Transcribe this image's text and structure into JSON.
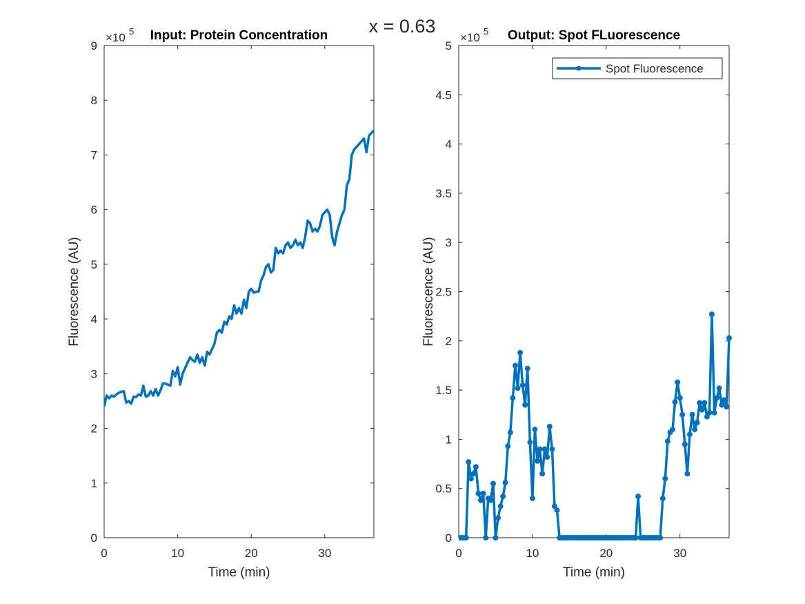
{
  "title": "x = 0.63",
  "chart_data": [
    {
      "type": "line",
      "title": "Input: Protein Concentration",
      "xlabel": "Time (min)",
      "ylabel": "Fluorescence (AU)",
      "y_scale_label": {
        "base": "×10",
        "exponent": "5"
      },
      "xlim": [
        0,
        36.67
      ],
      "ylim": [
        0,
        9
      ],
      "xticks": [
        0,
        10,
        20,
        30
      ],
      "yticks": [
        0,
        1,
        2,
        3,
        4,
        5,
        6,
        7,
        8,
        9
      ],
      "x": [
        0,
        0.33,
        0.67,
        1,
        1.33,
        1.67,
        2,
        2.33,
        2.67,
        3,
        3.33,
        3.67,
        4,
        4.33,
        4.67,
        5,
        5.33,
        5.67,
        6,
        6.33,
        6.67,
        7,
        7.33,
        7.67,
        8,
        8.33,
        8.67,
        9,
        9.33,
        9.67,
        10,
        10.33,
        10.67,
        11,
        11.33,
        11.67,
        12,
        12.33,
        12.67,
        13,
        13.33,
        13.67,
        14,
        14.33,
        14.67,
        15,
        15.33,
        15.67,
        16,
        16.33,
        16.67,
        17,
        17.33,
        17.67,
        18,
        18.33,
        18.67,
        19,
        19.33,
        19.67,
        20,
        20.33,
        20.67,
        21,
        21.33,
        21.67,
        22,
        22.33,
        22.67,
        23,
        23.33,
        23.67,
        24,
        24.33,
        24.67,
        25,
        25.33,
        25.67,
        26,
        26.33,
        26.67,
        27,
        27.33,
        27.67,
        28,
        28.33,
        28.67,
        29,
        29.33,
        29.67,
        30,
        30.33,
        30.67,
        31,
        31.33,
        31.67,
        32,
        32.33,
        32.67,
        33,
        33.33,
        33.67,
        34,
        34.33,
        34.67,
        35,
        35.33,
        35.67,
        36,
        36.33,
        36.67
      ],
      "series": [
        {
          "color": "#0072bd",
          "values": [
            2.4,
            2.6,
            2.55,
            2.6,
            2.58,
            2.62,
            2.65,
            2.67,
            2.68,
            2.47,
            2.5,
            2.45,
            2.58,
            2.57,
            2.62,
            2.6,
            2.78,
            2.58,
            2.6,
            2.68,
            2.6,
            2.72,
            2.6,
            2.7,
            2.82,
            2.82,
            2.8,
            2.78,
            3.05,
            2.95,
            3.12,
            2.8,
            3.0,
            3.1,
            3.2,
            3.3,
            3.25,
            3.22,
            3.35,
            3.2,
            3.3,
            3.15,
            3.4,
            3.35,
            3.45,
            3.55,
            3.75,
            3.8,
            3.75,
            3.95,
            3.9,
            4.05,
            4.0,
            4.25,
            4.1,
            4.2,
            4.1,
            4.35,
            4.2,
            4.5,
            4.55,
            4.48,
            4.5,
            4.5,
            4.7,
            4.8,
            4.95,
            5.0,
            4.85,
            4.9,
            5.3,
            5.2,
            5.25,
            5.2,
            5.35,
            5.4,
            5.3,
            5.35,
            5.45,
            5.35,
            5.4,
            5.3,
            5.5,
            5.8,
            5.75,
            5.6,
            5.65,
            5.6,
            5.7,
            5.9,
            5.95,
            6.0,
            5.9,
            5.5,
            5.35,
            5.6,
            5.75,
            5.9,
            6.0,
            6.45,
            6.55,
            7.0,
            7.1,
            7.15,
            7.2,
            7.25,
            7.3,
            7.05,
            7.35,
            7.4,
            7.45
          ]
        }
      ]
    },
    {
      "type": "line",
      "title": "Output: Spot FLuorescence",
      "xlabel": "Time (min)",
      "ylabel": "Fluorescence (AU)",
      "y_scale_label": {
        "base": "×10",
        "exponent": "5"
      },
      "xlim": [
        0,
        36.67
      ],
      "ylim": [
        0,
        5
      ],
      "xticks": [
        0,
        10,
        20,
        30
      ],
      "yticks": [
        0,
        0.5,
        1,
        1.5,
        2,
        2.5,
        3,
        3.5,
        4,
        4.5,
        5
      ],
      "legend": "northeast",
      "marker": "circle",
      "x": [
        0,
        0.33,
        0.67,
        1,
        1.33,
        1.67,
        2,
        2.33,
        2.67,
        3,
        3.33,
        3.67,
        4,
        4.33,
        4.67,
        5,
        5.33,
        5.67,
        6,
        6.33,
        6.67,
        7,
        7.33,
        7.67,
        8,
        8.33,
        8.67,
        9,
        9.33,
        9.67,
        10,
        10.33,
        10.67,
        11,
        11.33,
        11.67,
        12,
        12.33,
        12.67,
        13,
        13.33,
        13.67,
        14,
        14.33,
        14.67,
        15,
        15.33,
        15.67,
        16,
        16.33,
        16.67,
        17,
        17.33,
        17.67,
        18,
        18.33,
        18.67,
        19,
        19.33,
        19.67,
        20,
        20.33,
        20.67,
        21,
        21.33,
        21.67,
        22,
        22.33,
        22.67,
        23,
        23.33,
        23.67,
        24,
        24.33,
        24.67,
        25,
        25.33,
        25.67,
        26,
        26.33,
        26.67,
        27,
        27.33,
        27.67,
        28,
        28.33,
        28.67,
        29,
        29.33,
        29.67,
        30,
        30.33,
        30.67,
        31,
        31.33,
        31.67,
        32,
        32.33,
        32.67,
        33,
        33.33,
        33.67,
        34,
        34.33,
        34.67,
        35,
        35.33,
        35.67,
        36,
        36.33,
        36.67
      ],
      "series": [
        {
          "name": "Spot Fluorescence",
          "color": "#0072bd",
          "values": [
            0,
            0,
            0,
            0,
            0.77,
            0.6,
            0.65,
            0.72,
            0.45,
            0.38,
            0.45,
            0,
            0.4,
            0.38,
            0.55,
            0,
            0.2,
            0.32,
            0.42,
            0.56,
            0.93,
            1.07,
            1.42,
            1.75,
            1.52,
            1.88,
            1.55,
            1.35,
            1.72,
            0.97,
            0.4,
            1.1,
            0.78,
            0.9,
            0.65,
            0.9,
            0.82,
            1.13,
            0.9,
            0.32,
            0.28,
            0,
            0,
            0,
            0,
            0,
            0,
            0,
            0,
            0,
            0,
            0,
            0,
            0,
            0,
            0,
            0,
            0,
            0,
            0,
            0,
            0,
            0,
            0,
            0,
            0,
            0,
            0,
            0,
            0,
            0,
            0,
            0,
            0.42,
            0,
            0,
            0,
            0,
            0,
            0,
            0,
            0,
            0,
            0.4,
            0.6,
            0.98,
            1.07,
            1.1,
            1.38,
            1.58,
            1.42,
            1.25,
            0.95,
            0.65,
            1.05,
            1.25,
            1.1,
            1.17,
            1.37,
            1.3,
            1.37,
            1.23,
            1.27,
            2.27,
            1.27,
            1.42,
            1.52,
            1.35,
            1.4,
            1.33,
            2.03
          ]
        }
      ]
    }
  ]
}
